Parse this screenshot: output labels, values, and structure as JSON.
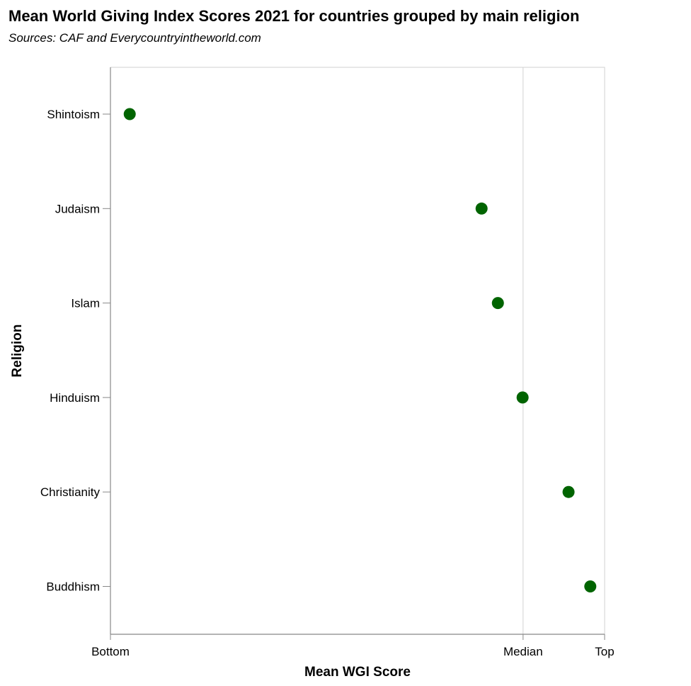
{
  "chart_data": {
    "type": "scatter",
    "title": "Mean World Giving Index Scores 2021 for countries grouped by main religion",
    "subtitle": "Sources: CAF and Everycountryintheworld.com",
    "xlabel": "Mean WGI Score",
    "ylabel": "Religion",
    "xlim": [
      0,
      100
    ],
    "x_ticks": [
      {
        "value": 0,
        "label": "Bottom"
      },
      {
        "value": 83.5,
        "label": "Median"
      },
      {
        "value": 100,
        "label": "Top"
      }
    ],
    "categories": [
      "Shintoism",
      "Judaism",
      "Islam",
      "Hinduism",
      "Christianity",
      "Buddhism"
    ],
    "values": [
      3.9,
      75.1,
      78.4,
      83.4,
      92.7,
      97.1
    ],
    "grid": "x-gridline-at-median",
    "point_color": "#006400"
  }
}
